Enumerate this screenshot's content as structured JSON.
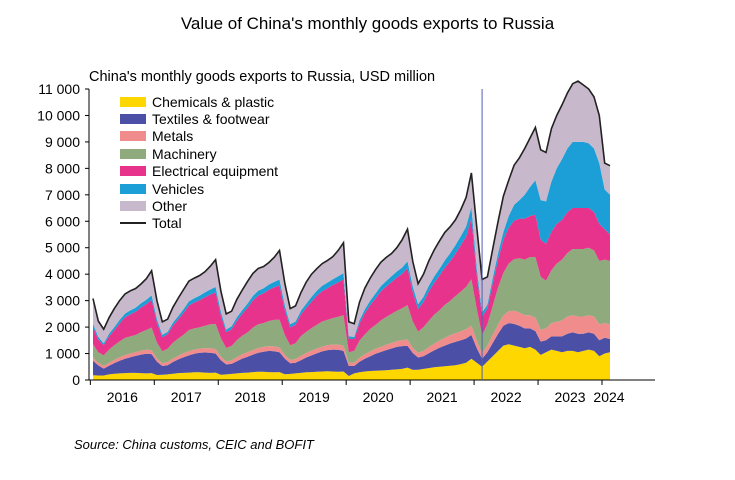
{
  "chart_data": {
    "type": "area",
    "title": "Value of China's monthly goods exports to Russia",
    "subtitle": "China's monthly  goods exports to Russia, USD million",
    "source": "Source: China customs, CEIC and BOFIT",
    "ylim": [
      0,
      11000
    ],
    "yticks": [
      0,
      1000,
      2000,
      3000,
      4000,
      5000,
      6000,
      7000,
      8000,
      9000,
      10000,
      11000
    ],
    "ytick_labels": [
      "0",
      "1 000",
      "2 000",
      "3 000",
      "4 000",
      "5 000",
      "6 000",
      "7 000",
      "8 000",
      "9 000",
      "10 000",
      "11 000"
    ],
    "xtick_labels": [
      "2016",
      "2017",
      "2018",
      "2019",
      "2020",
      "2021",
      "2022",
      "2023",
      "2024"
    ],
    "x_start": "2016-01",
    "x_end": "2024-02",
    "vertical_marker": "2022-02",
    "legend_position": "top-left",
    "grid": false,
    "series": [
      {
        "name": "Chemicals & plastic",
        "color": "#ffd700",
        "values": [
          180,
          170,
          170,
          210,
          240,
          250,
          260,
          270,
          270,
          260,
          250,
          260,
          190,
          200,
          210,
          240,
          260,
          270,
          280,
          290,
          290,
          280,
          270,
          280,
          200,
          210,
          230,
          250,
          270,
          280,
          300,
          310,
          310,
          300,
          290,
          300,
          220,
          230,
          250,
          270,
          290,
          300,
          310,
          320,
          330,
          320,
          310,
          320,
          150,
          250,
          290,
          320,
          340,
          350,
          360,
          370,
          390,
          400,
          420,
          470,
          380,
          390,
          420,
          450,
          480,
          500,
          520,
          540,
          560,
          600,
          650,
          800,
          650,
          500,
          700,
          900,
          1100,
          1300,
          1350,
          1300,
          1250,
          1200,
          1250,
          1150,
          950,
          1050,
          1150,
          1100,
          1050,
          1100,
          1100,
          1050,
          1100,
          1150,
          1100,
          900,
          1000,
          1050
        ]
      },
      {
        "name": "Textiles & footwear",
        "color": "#4b4fa6",
        "values": [
          550,
          380,
          260,
          330,
          400,
          480,
          540,
          590,
          640,
          700,
          740,
          720,
          500,
          330,
          350,
          440,
          520,
          590,
          650,
          700,
          740,
          760,
          760,
          720,
          550,
          380,
          380,
          460,
          540,
          600,
          660,
          720,
          760,
          800,
          800,
          750,
          580,
          400,
          400,
          480,
          560,
          630,
          700,
          760,
          800,
          830,
          830,
          780,
          380,
          280,
          400,
          480,
          560,
          640,
          700,
          760,
          800,
          850,
          860,
          820,
          640,
          460,
          480,
          560,
          640,
          720,
          780,
          840,
          880,
          900,
          920,
          900,
          550,
          300,
          350,
          500,
          650,
          750,
          800,
          820,
          800,
          750,
          700,
          700,
          500,
          450,
          500,
          550,
          600,
          650,
          700,
          700,
          650,
          650,
          650,
          600,
          600,
          500
        ]
      },
      {
        "name": "Metals",
        "color": "#f08c8c",
        "values": [
          120,
          100,
          100,
          110,
          120,
          130,
          140,
          140,
          140,
          150,
          150,
          150,
          120,
          110,
          120,
          130,
          140,
          150,
          160,
          160,
          160,
          160,
          170,
          170,
          130,
          120,
          130,
          150,
          160,
          170,
          170,
          180,
          180,
          180,
          180,
          180,
          140,
          130,
          140,
          160,
          170,
          180,
          180,
          180,
          190,
          190,
          200,
          200,
          120,
          120,
          150,
          170,
          180,
          190,
          190,
          200,
          210,
          220,
          230,
          240,
          190,
          180,
          200,
          230,
          250,
          270,
          290,
          310,
          330,
          340,
          350,
          360,
          280,
          200,
          250,
          300,
          350,
          400,
          450,
          500,
          500,
          500,
          500,
          500,
          450,
          450,
          500,
          550,
          600,
          650,
          650,
          650,
          650,
          650,
          650,
          600,
          550,
          550
        ]
      },
      {
        "name": "Machinery",
        "color": "#8faa7c",
        "values": [
          500,
          400,
          400,
          500,
          550,
          600,
          650,
          650,
          650,
          700,
          750,
          850,
          600,
          450,
          500,
          600,
          650,
          700,
          800,
          800,
          800,
          850,
          900,
          950,
          700,
          500,
          550,
          650,
          700,
          750,
          850,
          900,
          900,
          950,
          1000,
          1050,
          750,
          550,
          600,
          750,
          800,
          850,
          900,
          950,
          950,
          1000,
          1050,
          1150,
          400,
          450,
          650,
          750,
          850,
          900,
          1000,
          1050,
          1100,
          1150,
          1200,
          1300,
          1000,
          800,
          900,
          1000,
          1100,
          1150,
          1250,
          1300,
          1400,
          1500,
          1600,
          1750,
          1200,
          700,
          800,
          1100,
          1400,
          1600,
          1800,
          1950,
          2050,
          2100,
          2200,
          2300,
          2000,
          1800,
          2000,
          2200,
          2300,
          2400,
          2500,
          2550,
          2550,
          2550,
          2500,
          2400,
          2400,
          2400
        ]
      },
      {
        "name": "Electrical equipment",
        "color": "#e8338c",
        "values": [
          650,
          480,
          380,
          500,
          580,
          680,
          780,
          830,
          880,
          930,
          980,
          1050,
          750,
          530,
          550,
          650,
          730,
          830,
          930,
          980,
          1030,
          1080,
          1130,
          1200,
          850,
          600,
          630,
          730,
          830,
          930,
          1030,
          1080,
          1130,
          1180,
          1230,
          1300,
          950,
          680,
          700,
          820,
          900,
          1000,
          1100,
          1150,
          1200,
          1250,
          1300,
          1350,
          500,
          450,
          650,
          800,
          900,
          1000,
          1100,
          1150,
          1200,
          1250,
          1300,
          1400,
          1100,
          850,
          950,
          1100,
          1200,
          1300,
          1400,
          1500,
          1600,
          1750,
          1900,
          2300,
          1300,
          700,
          600,
          850,
          1050,
          1250,
          1350,
          1450,
          1500,
          1550,
          1550,
          1600,
          1400,
          1400,
          1450,
          1500,
          1500,
          1550,
          1550,
          1550,
          1550,
          1500,
          1450,
          1400,
          1150,
          1000
        ]
      },
      {
        "name": "Vehicles",
        "color": "#1b9fd6",
        "values": [
          130,
          100,
          80,
          100,
          110,
          130,
          140,
          150,
          150,
          160,
          160,
          170,
          130,
          90,
          90,
          110,
          120,
          140,
          150,
          160,
          170,
          180,
          190,
          200,
          150,
          100,
          110,
          130,
          140,
          160,
          170,
          180,
          190,
          200,
          210,
          220,
          170,
          120,
          120,
          140,
          160,
          180,
          190,
          200,
          210,
          220,
          230,
          240,
          100,
          80,
          120,
          150,
          170,
          190,
          200,
          210,
          220,
          230,
          240,
          260,
          220,
          180,
          200,
          220,
          240,
          260,
          280,
          300,
          320,
          350,
          380,
          420,
          250,
          150,
          150,
          200,
          250,
          300,
          450,
          600,
          700,
          900,
          1100,
          1300,
          1500,
          1600,
          1900,
          2100,
          2300,
          2400,
          2500,
          2500,
          2500,
          2450,
          2400,
          2300,
          1500,
          1500
        ]
      },
      {
        "name": "Other",
        "color": "#c8b8cc",
        "values": [
          950,
          600,
          530,
          600,
          700,
          730,
          740,
          740,
          730,
          730,
          800,
          930,
          700,
          490,
          480,
          580,
          680,
          740,
          750,
          760,
          760,
          780,
          880,
          1030,
          780,
          590,
          570,
          680,
          760,
          840,
          850,
          850,
          820,
          830,
          930,
          1100,
          830,
          590,
          590,
          680,
          820,
          860,
          830,
          840,
          840,
          850,
          980,
          1150,
          550,
          500,
          680,
          800,
          850,
          900,
          900,
          890,
          860,
          900,
          1050,
          1210,
          950,
          780,
          850,
          940,
          1000,
          1050,
          1030,
          1000,
          960,
          1000,
          1100,
          1300,
          1500,
          1250,
          1050,
          1100,
          1200,
          1350,
          1350,
          1500,
          1600,
          1750,
          1850,
          1950,
          1900,
          1850,
          2000,
          2000,
          2050,
          2100,
          2200,
          2300,
          2150,
          2050,
          1950,
          1800,
          1000,
          1100
        ]
      },
      {
        "name": "Total",
        "color": "#222222",
        "line": true,
        "values": [
          3080,
          2230,
          1920,
          2350,
          2700,
          3000,
          3250,
          3370,
          3460,
          3630,
          3830,
          4130,
          2990,
          2200,
          2300,
          2750,
          3100,
          3420,
          3740,
          3850,
          3950,
          4090,
          4300,
          4550,
          3360,
          2500,
          2600,
          3050,
          3400,
          3730,
          4030,
          4220,
          4290,
          4440,
          4640,
          4900,
          3640,
          2700,
          2800,
          3300,
          3700,
          4000,
          4210,
          4400,
          4520,
          4660,
          4900,
          5190,
          2200,
          2130,
          2940,
          3470,
          3850,
          4170,
          4450,
          4630,
          4780,
          5000,
          5300,
          5700,
          4480,
          3640,
          4000,
          4500,
          4910,
          5250,
          5580,
          5790,
          6050,
          6440,
          6900,
          7830,
          5760,
          3800,
          3900,
          4950,
          6000,
          6950,
          7550,
          8120,
          8400,
          8750,
          9150,
          9550,
          8700,
          8600,
          9500,
          10000,
          10400,
          10850,
          11200,
          11300,
          11150,
          11000,
          10700,
          10000,
          8200,
          8100
        ]
      }
    ]
  }
}
